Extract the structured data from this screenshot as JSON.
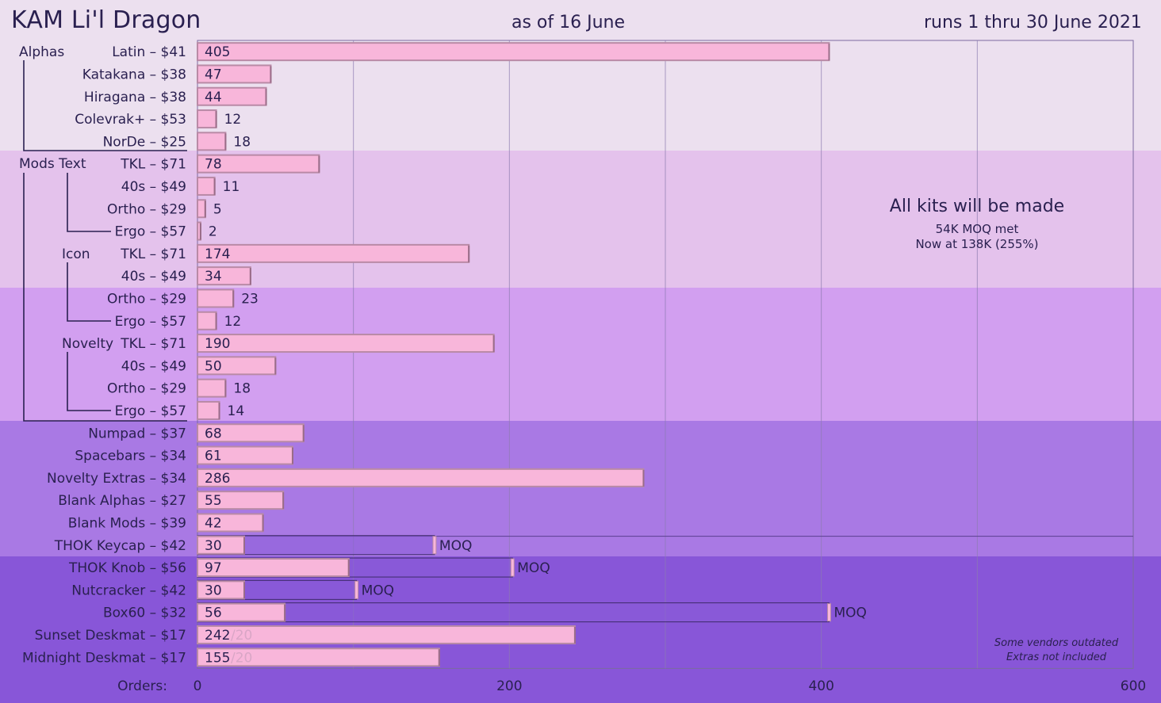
{
  "header": {
    "title": "KAM Li'l Dragon",
    "as_of": "as of 16 June",
    "runs": "runs 1 thru 30 June 2021"
  },
  "notes": {
    "headline": "All kits will be made",
    "line1": "54K MOQ met",
    "line2": "Now at 138K (255%)",
    "footnote1": "Some vendors outdated",
    "footnote2": "Extras not included"
  },
  "colors": {
    "band1": "#ece0ef",
    "band2": "#e4c2ec",
    "band3": "#d29ff0",
    "band4": "#a979e4",
    "band5": "#8856d8",
    "bar_fill": "#f8b6da",
    "bar_edge": "#b98aa6",
    "moq_fill": "#8a5cd8",
    "text": "#2a2050"
  },
  "groups": {
    "alphas": "Alphas",
    "mods_text": "Mods Text",
    "icon": "Icon",
    "novelty": "Novelty"
  },
  "chart_data": {
    "type": "bar",
    "orientation": "horizontal",
    "title": "KAM Li'l Dragon",
    "xlabel": "Orders:",
    "xlim": [
      0,
      600
    ],
    "xticks": [
      0,
      200,
      400,
      600
    ],
    "grid": true,
    "categories": [
      "Latin – $41",
      "Katakana – $38",
      "Hiragana – $38",
      "Colevrak+ – $53",
      "NorDe – $25",
      "TKL – $71",
      "40s – $49",
      "Ortho – $29",
      "Ergo – $57",
      "TKL – $71",
      "40s – $49",
      "Ortho – $29",
      "Ergo – $57",
      "TKL – $71",
      "40s – $49",
      "Ortho – $29",
      "Ergo – $57",
      "Numpad – $37",
      "Spacebars – $34",
      "Novelty Extras – $34",
      "Blank Alphas – $27",
      "Blank Mods – $39",
      "THOK Keycap – $42",
      "THOK Knob – $56",
      "Nutcracker – $42",
      "Box60 – $32",
      "Sunset Deskmat – $17",
      "Midnight Deskmat – $17"
    ],
    "series": [
      {
        "name": "Orders",
        "values": [
          405,
          47,
          44,
          12,
          18,
          78,
          11,
          5,
          2,
          174,
          34,
          23,
          12,
          190,
          50,
          18,
          14,
          68,
          61,
          286,
          55,
          42,
          30,
          97,
          30,
          56,
          242,
          155
        ]
      }
    ],
    "moq": [
      null,
      null,
      null,
      null,
      null,
      null,
      null,
      null,
      null,
      null,
      null,
      null,
      null,
      null,
      null,
      null,
      null,
      null,
      null,
      null,
      null,
      null,
      152,
      202,
      102,
      405,
      null,
      null
    ],
    "moq_label": "MOQ",
    "extra_labels": [
      null,
      null,
      null,
      null,
      null,
      null,
      null,
      null,
      null,
      null,
      null,
      null,
      null,
      null,
      null,
      null,
      null,
      null,
      null,
      null,
      null,
      null,
      null,
      null,
      null,
      null,
      "/20",
      "/20"
    ]
  }
}
